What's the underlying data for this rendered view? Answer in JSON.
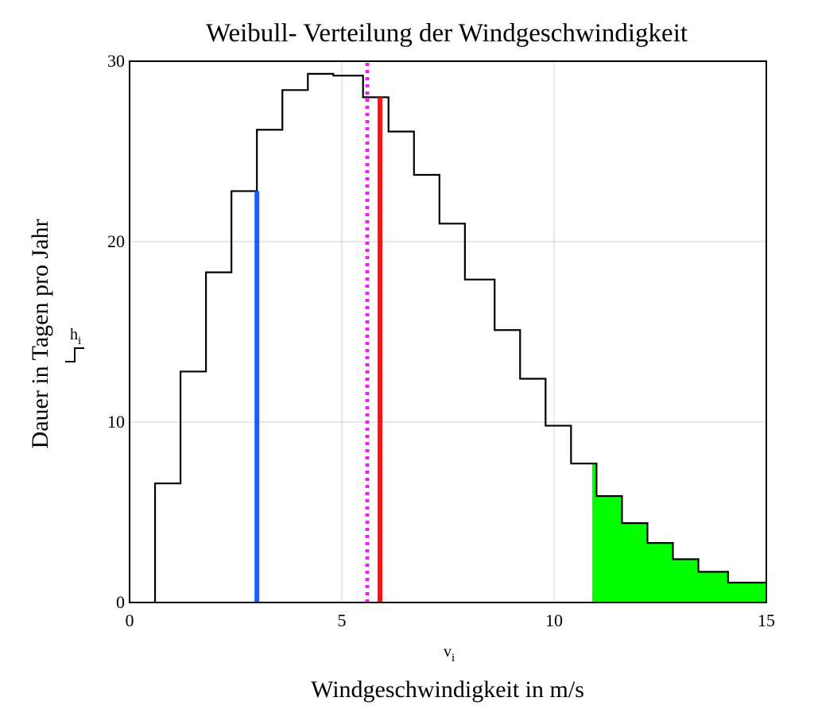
{
  "chart_data": {
    "type": "step",
    "title": "Weibull- Verteilung der Windgeschwindigkeit",
    "xlabel": "Windgeschwindigkeit in m/s",
    "ylabel": "Dauer in Tagen pro Jahr",
    "x_var": {
      "base": "v",
      "sub": "i"
    },
    "y_var": {
      "base": "h",
      "sub": "i"
    },
    "xlim": [
      0,
      15
    ],
    "ylim": [
      0,
      30
    ],
    "x_ticks": [
      "0",
      "5",
      "10",
      "15"
    ],
    "y_ticks": [
      "0",
      "10",
      "20",
      "30"
    ],
    "grid": true,
    "series": [
      {
        "x_edges": [
          0.6,
          1.2,
          1.8,
          2.4,
          3.0,
          3.6,
          4.2,
          4.8,
          5.5,
          6.1,
          6.7,
          7.3,
          7.9,
          8.6,
          9.2,
          9.8,
          10.4,
          11.0,
          11.6,
          12.2,
          12.8,
          13.4,
          14.1,
          14.7,
          15.0
        ],
        "values": [
          6.6,
          12.8,
          18.3,
          22.8,
          26.2,
          28.4,
          29.3,
          29.2,
          28.0,
          26.1,
          23.7,
          21.0,
          17.9,
          15.1,
          12.4,
          9.8,
          7.7,
          5.9,
          4.4,
          3.3,
          2.4,
          1.7,
          1.1,
          1.1
        ],
        "color": "#000000"
      }
    ],
    "highlight_region": {
      "x_from": 10.9,
      "x_to": 15.0,
      "color": "#00ff00"
    },
    "markers": [
      {
        "x": 3.0,
        "y_top": 22.8,
        "color": "#1a5cff",
        "style": "solid"
      },
      {
        "x": 5.9,
        "y_top": 28.0,
        "color": "#ff1111",
        "style": "solid"
      },
      {
        "x": 5.6,
        "y_top": 30.0,
        "color": "#ee22ee",
        "style": "dotted"
      }
    ]
  }
}
